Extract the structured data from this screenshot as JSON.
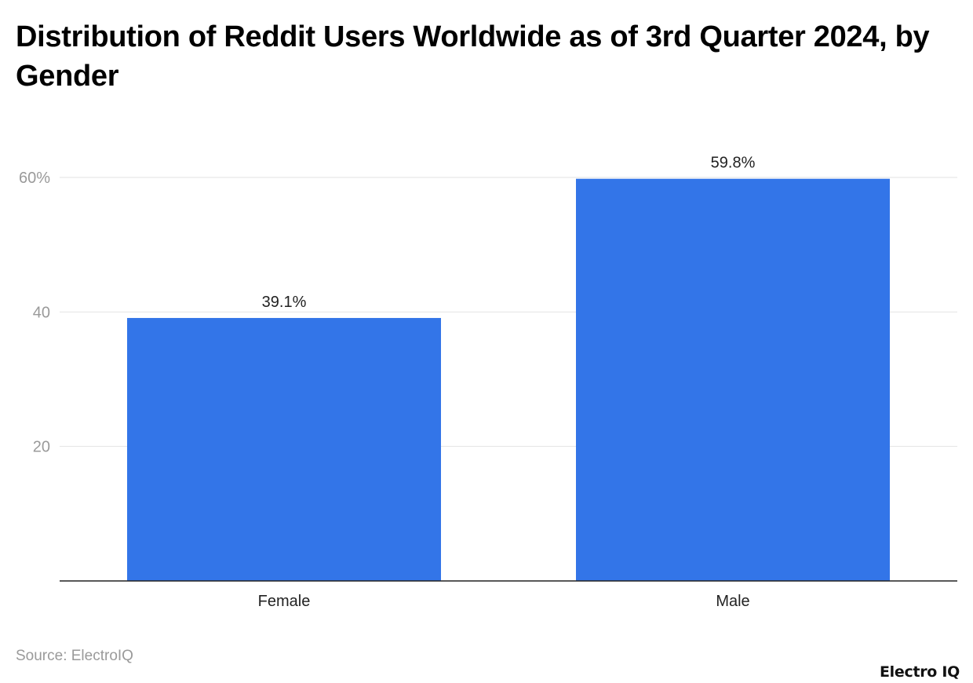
{
  "chart_data": {
    "type": "bar",
    "title": "Distribution of Reddit Users Worldwide as of 3rd Quarter 2024, by Gender",
    "categories": [
      "Female",
      "Male"
    ],
    "values": [
      39.1,
      59.8
    ],
    "data_labels": [
      "39.1%",
      "59.8%"
    ],
    "xlabel": "",
    "ylabel": "",
    "ylim": [
      0,
      60
    ],
    "yticks": [
      20,
      40,
      60
    ],
    "ytick_labels": [
      "20",
      "40",
      "60%"
    ],
    "grid": true,
    "bar_color": "#3375E8"
  },
  "source": "Source: ElectroIQ",
  "logo": "Electro IQ"
}
